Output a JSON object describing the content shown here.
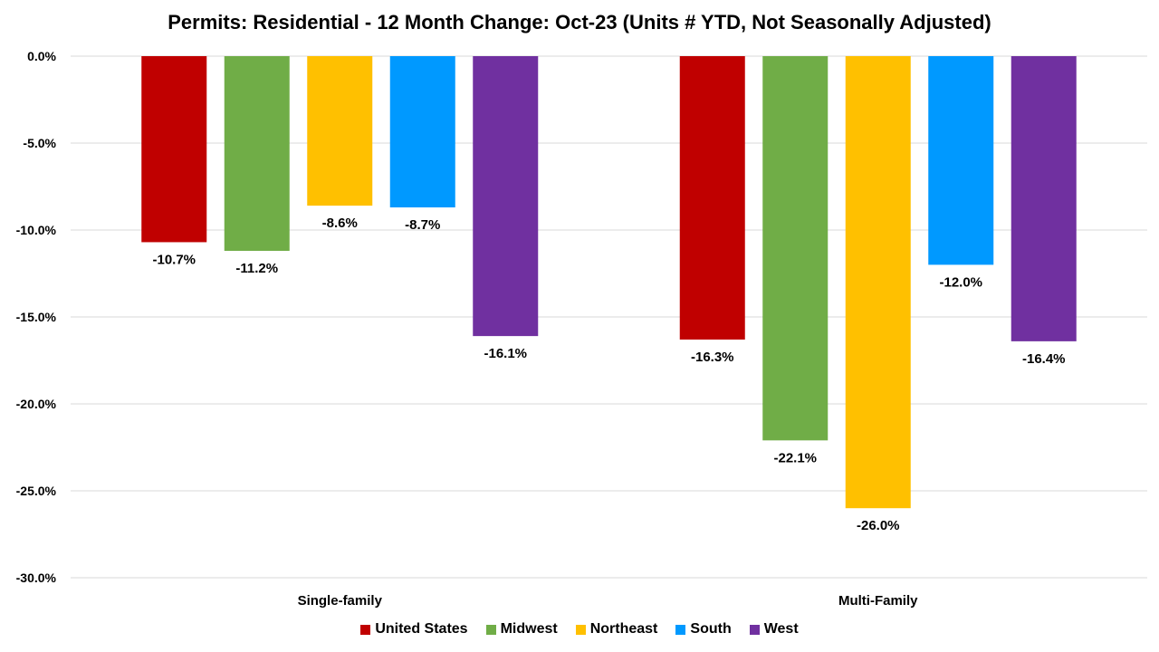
{
  "chart_data": {
    "type": "bar",
    "title": "Permits: Residential - 12 Month Change:  Oct-23 (Units # YTD, Not Seasonally Adjusted)",
    "categories": [
      "Single-family",
      "Multi-Family"
    ],
    "series": [
      {
        "name": "United States",
        "color": "#C00000",
        "values": [
          -10.7,
          -16.3
        ],
        "labels": [
          "-10.7%",
          "-16.3%"
        ]
      },
      {
        "name": "Midwest",
        "color": "#70AD47",
        "values": [
          -11.2,
          -22.1
        ],
        "labels": [
          "-11.2%",
          "-22.1%"
        ]
      },
      {
        "name": "Northeast",
        "color": "#FFC000",
        "values": [
          -8.6,
          -26.0
        ],
        "labels": [
          "-8.6%",
          "-26.0%"
        ]
      },
      {
        "name": "South",
        "color": "#0099FF",
        "values": [
          -8.7,
          -12.0
        ],
        "labels": [
          "-8.7%",
          "-12.0%"
        ]
      },
      {
        "name": "West",
        "color": "#7030A0",
        "values": [
          -16.1,
          -16.4
        ],
        "labels": [
          "-16.1%",
          "-16.4%"
        ]
      }
    ],
    "y_ticks": [
      0,
      -5,
      -10,
      -15,
      -20,
      -25,
      -30
    ],
    "y_tick_labels": [
      "0.0%",
      "-5.0%",
      "-10.0%",
      "-15.0%",
      "-20.0%",
      "-25.0%",
      "-30.0%"
    ],
    "ylim": [
      -30,
      0
    ],
    "grid": true,
    "legend_position": "bottom"
  }
}
